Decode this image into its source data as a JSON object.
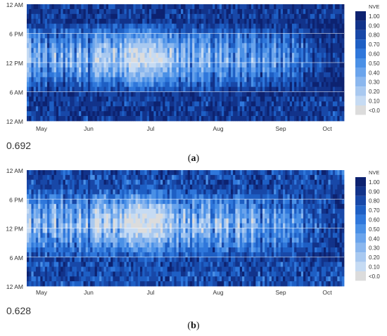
{
  "colors": {
    "scale": [
      "#dcdcdc",
      "#c6dbf3",
      "#a9c9f0",
      "#8bb7ee",
      "#6aa4ec",
      "#4a90e6",
      "#2f77db",
      "#1e5fc4",
      "#1848a8",
      "#12338a",
      "#0d2270"
    ],
    "gridline": "#ffffff",
    "text": "#333333"
  },
  "chart_data": [
    {
      "type": "heatmap",
      "panel_label": "a",
      "score": "0.692",
      "y_ticks": [
        "12 AM",
        "6 PM",
        "12 PM",
        "6 AM",
        "12 AM"
      ],
      "x_ticks": [
        "May",
        "Jun",
        "Jul",
        "Aug",
        "Sep",
        "Oct"
      ],
      "legend": {
        "title": "NVE",
        "labels": [
          "1.00",
          "0.90",
          "0.80",
          "0.70",
          "0.60",
          "0.50",
          "0.40",
          "0.30",
          "0.20",
          "0.10",
          "<0.0"
        ]
      },
      "daily_peak_value": [
        0.08,
        0.15,
        0.55,
        0.25,
        0.42,
        0.18,
        0.62,
        0.35,
        0.22,
        0.7,
        0.48,
        0.3,
        0.12,
        0.58,
        0.4,
        0.2,
        0.65,
        0.28,
        0.5,
        0.15,
        0.45,
        0.6,
        0.25,
        0.1,
        0.52,
        0.35,
        0.18,
        0.7,
        0.42,
        0.22,
        0.05,
        0.08,
        0.15,
        0.3,
        0.1,
        0.12,
        0.2,
        0.38,
        0.08,
        0.25,
        0.45,
        0.12,
        0.3,
        0.05,
        0.18,
        0.02,
        0.0,
        0.05,
        0.0,
        0.02,
        0.08,
        0.0,
        0.04,
        0.1,
        0.0,
        0.03,
        0.06,
        0.12,
        0.02,
        0.05,
        0.15,
        0.2,
        0.35,
        0.1,
        0.25,
        0.4,
        0.18,
        0.55,
        0.3,
        0.12,
        0.45,
        0.2,
        0.6,
        0.15,
        0.35,
        0.5,
        0.25,
        0.1,
        0.42,
        0.3,
        0.18,
        0.55,
        0.62,
        0.28,
        0.4,
        0.15,
        0.5,
        0.35,
        0.22,
        0.6,
        0.45,
        0.7,
        0.3,
        0.12,
        0.55,
        0.4,
        0.25,
        0.65,
        0.5,
        0.2,
        0.35,
        0.6,
        0.45,
        0.75,
        0.3,
        0.55,
        0.4,
        0.68,
        0.5,
        0.28,
        0.6,
        0.45,
        0.72,
        0.35,
        0.58,
        0.5,
        0.8,
        0.42,
        0.62,
        0.55,
        0.7,
        0.48,
        0.85,
        0.6,
        0.75,
        0.65,
        0.9,
        0.7,
        0.8,
        0.72,
        0.88,
        0.78,
        0.92,
        0.85,
        0.95,
        0.82,
        0.9,
        0.88,
        0.95,
        0.92
      ]
    },
    {
      "type": "heatmap",
      "panel_label": "b",
      "score": "0.628",
      "y_ticks": [
        "12 AM",
        "6 PM",
        "12 PM",
        "6 AM",
        "12 AM"
      ],
      "x_ticks": [
        "May",
        "Jun",
        "Jul",
        "Aug",
        "Sep",
        "Oct"
      ],
      "legend": {
        "title": "NVE",
        "labels": [
          "1.00",
          "0.90",
          "0.80",
          "0.70",
          "0.60",
          "0.50",
          "0.40",
          "0.30",
          "0.20",
          "0.10",
          "<0.0"
        ]
      },
      "daily_peak_value": [
        0.12,
        0.2,
        0.6,
        0.3,
        0.45,
        0.22,
        0.65,
        0.4,
        0.25,
        0.72,
        0.5,
        0.35,
        0.15,
        0.6,
        0.42,
        0.25,
        0.68,
        0.3,
        0.55,
        0.2,
        0.5,
        0.62,
        0.3,
        0.15,
        0.55,
        0.4,
        0.22,
        0.72,
        0.45,
        0.28,
        0.1,
        0.12,
        0.2,
        0.35,
        0.15,
        0.18,
        0.25,
        0.42,
        0.12,
        0.3,
        0.5,
        0.18,
        0.35,
        0.1,
        0.22,
        0.05,
        0.02,
        0.08,
        0.0,
        0.05,
        0.1,
        0.02,
        0.06,
        0.12,
        0.0,
        0.05,
        0.08,
        0.15,
        0.05,
        0.08,
        0.18,
        0.25,
        0.4,
        0.15,
        0.3,
        0.45,
        0.22,
        0.6,
        0.35,
        0.15,
        0.5,
        0.25,
        0.62,
        0.2,
        0.4,
        0.55,
        0.3,
        0.15,
        0.45,
        0.35,
        0.22,
        0.58,
        0.65,
        0.32,
        0.45,
        0.2,
        0.55,
        0.4,
        0.25,
        0.62,
        0.5,
        0.72,
        0.35,
        0.15,
        0.6,
        0.45,
        0.3,
        0.68,
        0.55,
        0.25,
        0.4,
        0.62,
        0.5,
        0.78,
        0.35,
        0.6,
        0.45,
        0.7,
        0.55,
        0.32,
        0.62,
        0.5,
        0.75,
        0.4,
        0.6,
        0.55,
        0.82,
        0.45,
        0.65,
        0.6,
        0.72,
        0.52,
        0.88,
        0.62,
        0.78,
        0.68,
        0.92,
        0.72,
        0.82,
        0.75,
        0.9,
        0.8,
        0.93,
        0.87,
        0.96,
        0.85,
        0.92,
        0.9,
        0.96,
        0.94
      ]
    }
  ]
}
